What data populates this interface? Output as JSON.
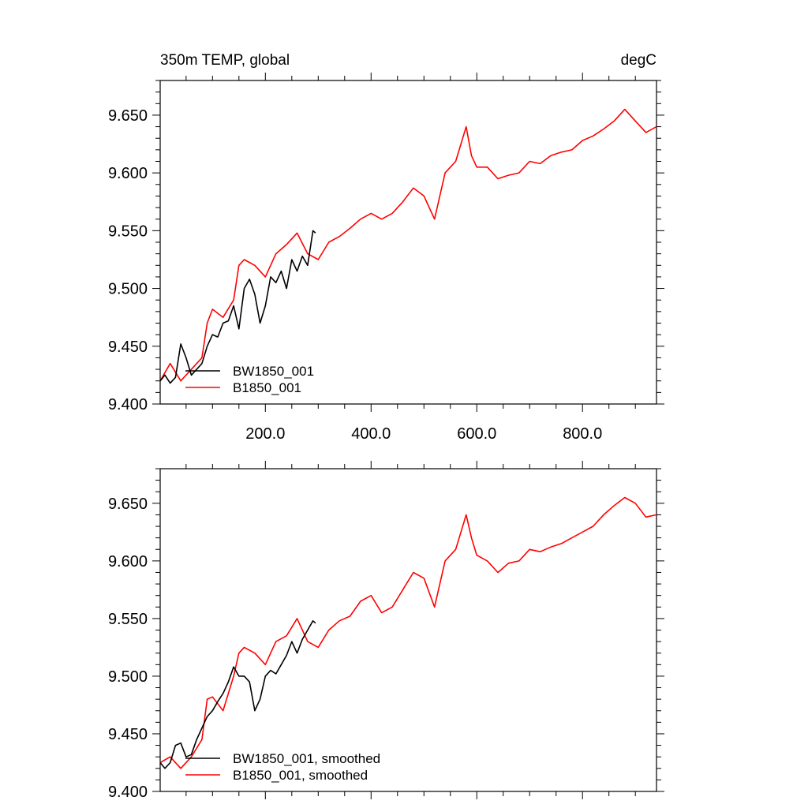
{
  "chart_data": [
    {
      "type": "line",
      "title": "350m TEMP, global",
      "units": "degC",
      "xlim": [
        1,
        940
      ],
      "ylim": [
        9.4,
        9.68
      ],
      "x_ticks": [
        200,
        400,
        600,
        800
      ],
      "x_tick_labels": [
        "200.0",
        "400.0",
        "600.0",
        "800.0"
      ],
      "y_ticks": [
        9.4,
        9.45,
        9.5,
        9.55,
        9.6,
        9.65
      ],
      "y_tick_labels": [
        "9.400",
        "9.450",
        "9.500",
        "9.550",
        "9.600",
        "9.650"
      ],
      "legend_position": "bottom-left",
      "series": [
        {
          "name": "BW1850_001",
          "color": "#000000",
          "x": [
            1,
            10,
            20,
            30,
            40,
            50,
            60,
            70,
            80,
            90,
            100,
            110,
            120,
            130,
            140,
            150,
            160,
            170,
            180,
            190,
            200,
            210,
            220,
            230,
            240,
            250,
            260,
            270,
            280,
            290,
            295
          ],
          "y": [
            9.42,
            9.425,
            9.418,
            9.423,
            9.452,
            9.44,
            9.425,
            9.43,
            9.435,
            9.45,
            9.46,
            9.458,
            9.47,
            9.472,
            9.485,
            9.465,
            9.5,
            9.508,
            9.495,
            9.47,
            9.485,
            9.51,
            9.505,
            9.515,
            9.5,
            9.525,
            9.515,
            9.528,
            9.52,
            9.55,
            9.548
          ]
        },
        {
          "name": "B1850_001",
          "color": "#ff0000",
          "x": [
            1,
            20,
            40,
            60,
            80,
            90,
            100,
            120,
            140,
            150,
            160,
            180,
            200,
            220,
            240,
            260,
            280,
            300,
            320,
            340,
            360,
            380,
            400,
            420,
            440,
            460,
            480,
            500,
            520,
            540,
            560,
            580,
            590,
            600,
            620,
            640,
            660,
            680,
            700,
            720,
            740,
            760,
            780,
            800,
            820,
            840,
            860,
            880,
            900,
            920,
            940
          ],
          "y": [
            9.42,
            9.435,
            9.42,
            9.43,
            9.44,
            9.47,
            9.482,
            9.475,
            9.49,
            9.52,
            9.525,
            9.52,
            9.51,
            9.53,
            9.538,
            9.548,
            9.53,
            9.525,
            9.54,
            9.545,
            9.552,
            9.56,
            9.565,
            9.56,
            9.565,
            9.575,
            9.587,
            9.58,
            9.56,
            9.6,
            9.61,
            9.64,
            9.615,
            9.605,
            9.605,
            9.595,
            9.598,
            9.6,
            9.61,
            9.608,
            9.615,
            9.618,
            9.62,
            9.628,
            9.632,
            9.638,
            9.645,
            9.655,
            9.645,
            9.635,
            9.64
          ]
        }
      ]
    },
    {
      "type": "line",
      "title": "",
      "units": "",
      "xlim": [
        1,
        940
      ],
      "ylim": [
        9.4,
        9.68
      ],
      "x_ticks": [
        200,
        400,
        600,
        800
      ],
      "x_tick_labels": [],
      "y_ticks": [
        9.4,
        9.45,
        9.5,
        9.55,
        9.6,
        9.65
      ],
      "y_tick_labels": [
        "9.400",
        "9.450",
        "9.500",
        "9.550",
        "9.600",
        "9.650"
      ],
      "legend_position": "bottom-left",
      "series": [
        {
          "name": "BW1850_001, smoothed",
          "color": "#000000",
          "x": [
            1,
            10,
            20,
            30,
            40,
            50,
            60,
            70,
            80,
            90,
            100,
            110,
            120,
            130,
            140,
            150,
            160,
            170,
            180,
            190,
            200,
            210,
            220,
            230,
            240,
            250,
            260,
            270,
            280,
            290,
            295
          ],
          "y": [
            9.425,
            9.42,
            9.425,
            9.44,
            9.442,
            9.43,
            9.432,
            9.445,
            9.455,
            9.465,
            9.47,
            9.478,
            9.485,
            9.495,
            9.508,
            9.5,
            9.5,
            9.495,
            9.47,
            9.48,
            9.5,
            9.505,
            9.502,
            9.51,
            9.518,
            9.53,
            9.52,
            9.532,
            9.54,
            9.548,
            9.546
          ]
        },
        {
          "name": "B1850_001, smoothed",
          "color": "#ff0000",
          "x": [
            1,
            20,
            40,
            60,
            80,
            90,
            100,
            120,
            140,
            150,
            160,
            180,
            200,
            220,
            240,
            260,
            280,
            300,
            320,
            340,
            360,
            380,
            400,
            420,
            440,
            460,
            480,
            500,
            520,
            540,
            560,
            580,
            590,
            600,
            620,
            640,
            660,
            680,
            700,
            720,
            740,
            760,
            780,
            800,
            820,
            840,
            860,
            880,
            900,
            920,
            940
          ],
          "y": [
            9.425,
            9.43,
            9.42,
            9.43,
            9.445,
            9.48,
            9.482,
            9.47,
            9.5,
            9.52,
            9.525,
            9.52,
            9.51,
            9.53,
            9.535,
            9.55,
            9.53,
            9.525,
            9.54,
            9.548,
            9.552,
            9.565,
            9.57,
            9.555,
            9.56,
            9.575,
            9.59,
            9.585,
            9.56,
            9.6,
            9.61,
            9.64,
            9.62,
            9.605,
            9.6,
            9.59,
            9.598,
            9.6,
            9.61,
            9.608,
            9.612,
            9.615,
            9.62,
            9.625,
            9.63,
            9.64,
            9.648,
            9.655,
            9.65,
            9.638,
            9.64
          ]
        }
      ]
    }
  ]
}
